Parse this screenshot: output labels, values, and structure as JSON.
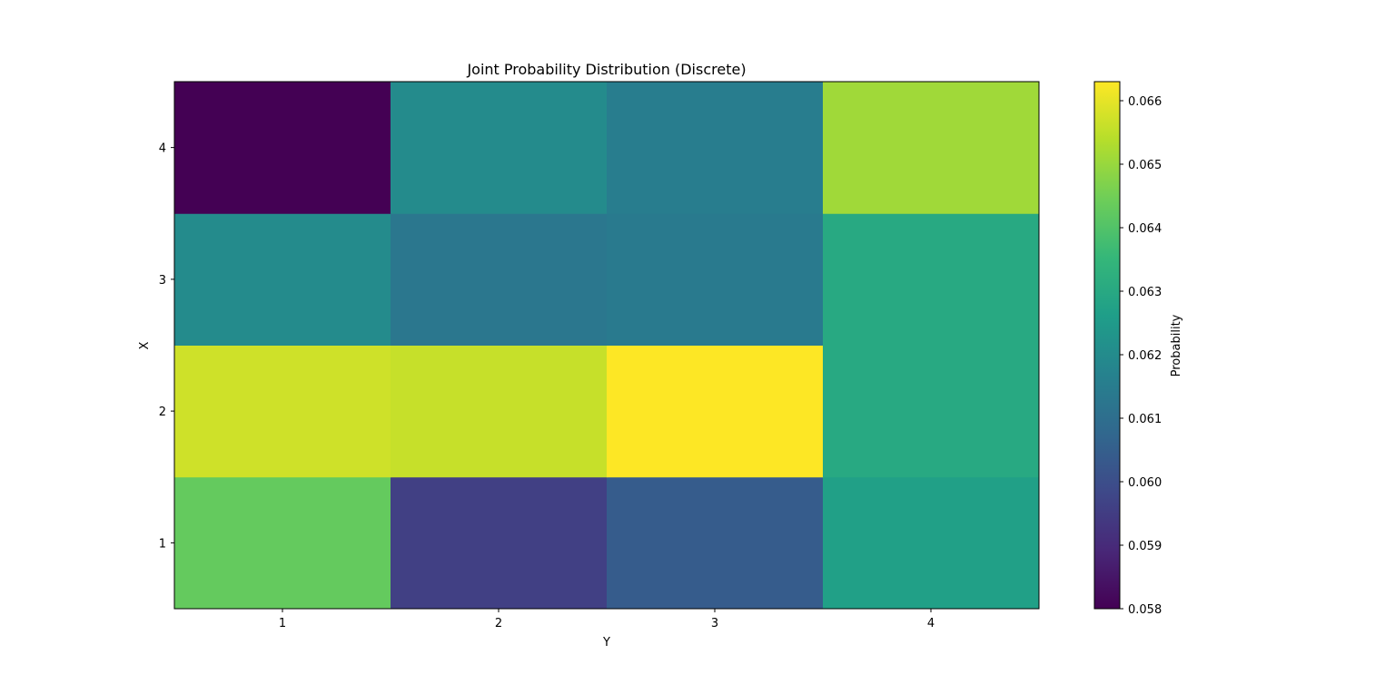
{
  "chart_data": {
    "type": "heatmap",
    "title": "Joint Probability Distribution (Discrete)",
    "xlabel": "Y",
    "ylabel": "X",
    "x_categories": [
      "1",
      "2",
      "3",
      "4"
    ],
    "y_categories": [
      "1",
      "2",
      "3",
      "4"
    ],
    "values": [
      [
        0.0643,
        0.0596,
        0.0604,
        0.0627
      ],
      [
        0.0657,
        0.0656,
        0.0663,
        0.063
      ],
      [
        0.062,
        0.0613,
        0.0614,
        0.063
      ],
      [
        0.058,
        0.062,
        0.0615,
        0.0651
      ]
    ],
    "colormap": "viridis",
    "colorbar": {
      "label": "Probability",
      "range": [
        0.058,
        0.0663
      ],
      "ticks": [
        "0.058",
        "0.059",
        "0.060",
        "0.061",
        "0.062",
        "0.063",
        "0.064",
        "0.065",
        "0.066"
      ]
    }
  }
}
